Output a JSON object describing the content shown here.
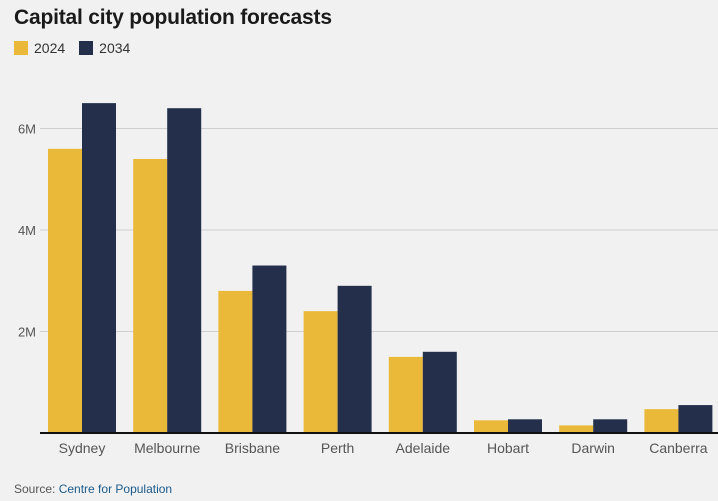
{
  "title": "Capital city population forecasts",
  "source": {
    "prefix": "Source:",
    "link_text": "Centre for Population"
  },
  "colors": {
    "2024": "#ebb93a",
    "2034": "#232f4b",
    "grid": "#cfcfcf",
    "axis": "#111111"
  },
  "chart_data": {
    "type": "bar",
    "title": "Capital city population forecasts",
    "categories": [
      "Sydney",
      "Melbourne",
      "Brisbane",
      "Perth",
      "Adelaide",
      "Hobart",
      "Darwin",
      "Canberra"
    ],
    "series": [
      {
        "name": "2024",
        "values": [
          5600000,
          5400000,
          2800000,
          2400000,
          1500000,
          250000,
          150000,
          470000
        ]
      },
      {
        "name": "2034",
        "values": [
          6500000,
          6400000,
          3300000,
          2900000,
          1600000,
          270000,
          270000,
          550000
        ]
      }
    ],
    "ylim": [
      0,
      6000000
    ],
    "yticks": [
      {
        "value": 2000000,
        "label": "2M"
      },
      {
        "value": 4000000,
        "label": "4M"
      },
      {
        "value": 6000000,
        "label": "6M"
      }
    ],
    "xlabel": "",
    "ylabel": "",
    "grid": true,
    "legend": "top-left"
  }
}
